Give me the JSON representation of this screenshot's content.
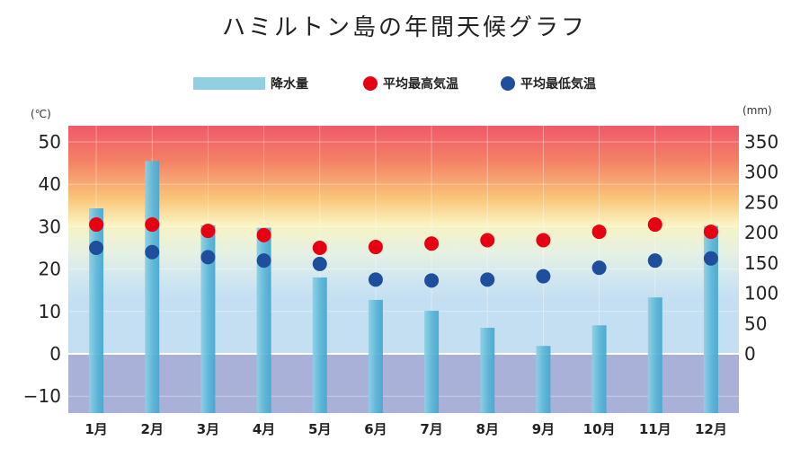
{
  "title": "ハミルトン島の年間天候グラフ",
  "legend": {
    "precip_label": "降水量",
    "max_label": "平均最高気温",
    "min_label": "平均最低気温"
  },
  "units": {
    "left": "(℃)",
    "right": "(mm)"
  },
  "colors": {
    "bar": "#5fb9d8",
    "bar_light": "#93cfe2",
    "max": "#e60012",
    "min": "#1f4e9c"
  },
  "chart_data": {
    "type": "bar",
    "title": "ハミルトン島の年間天候グラフ",
    "categories": [
      "1月",
      "2月",
      "3月",
      "4月",
      "5月",
      "6月",
      "7月",
      "8月",
      "9月",
      "10月",
      "11月",
      "12月"
    ],
    "series": [
      {
        "name": "降水量",
        "type": "bar",
        "axis": "right",
        "values": [
          240,
          318,
          212,
          208,
          126,
          89,
          71,
          43,
          13,
          47,
          93,
          211
        ]
      },
      {
        "name": "平均最高気温",
        "type": "scatter",
        "axis": "left",
        "values": [
          30.5,
          30.5,
          29.0,
          28.0,
          25.0,
          25.2,
          26.0,
          26.8,
          26.8,
          28.8,
          30.5,
          28.8
        ]
      },
      {
        "name": "平均最低気温",
        "type": "scatter",
        "axis": "left",
        "values": [
          25.0,
          24.0,
          22.8,
          22.0,
          21.2,
          17.5,
          17.3,
          17.5,
          18.3,
          20.3,
          22.0,
          22.5
        ]
      }
    ],
    "y_left": {
      "label": "(℃)",
      "ticks": [
        50,
        40,
        30,
        20,
        10,
        0,
        -10
      ],
      "ticks_text": [
        "50",
        "40",
        "30",
        "20",
        "10",
        "0",
        "−10"
      ],
      "range": [
        -14,
        53
      ]
    },
    "y_right": {
      "label": "(mm)",
      "ticks": [
        350,
        300,
        250,
        200,
        150,
        100,
        50,
        0
      ],
      "range": [
        0,
        350
      ]
    },
    "legend_position": "top"
  }
}
